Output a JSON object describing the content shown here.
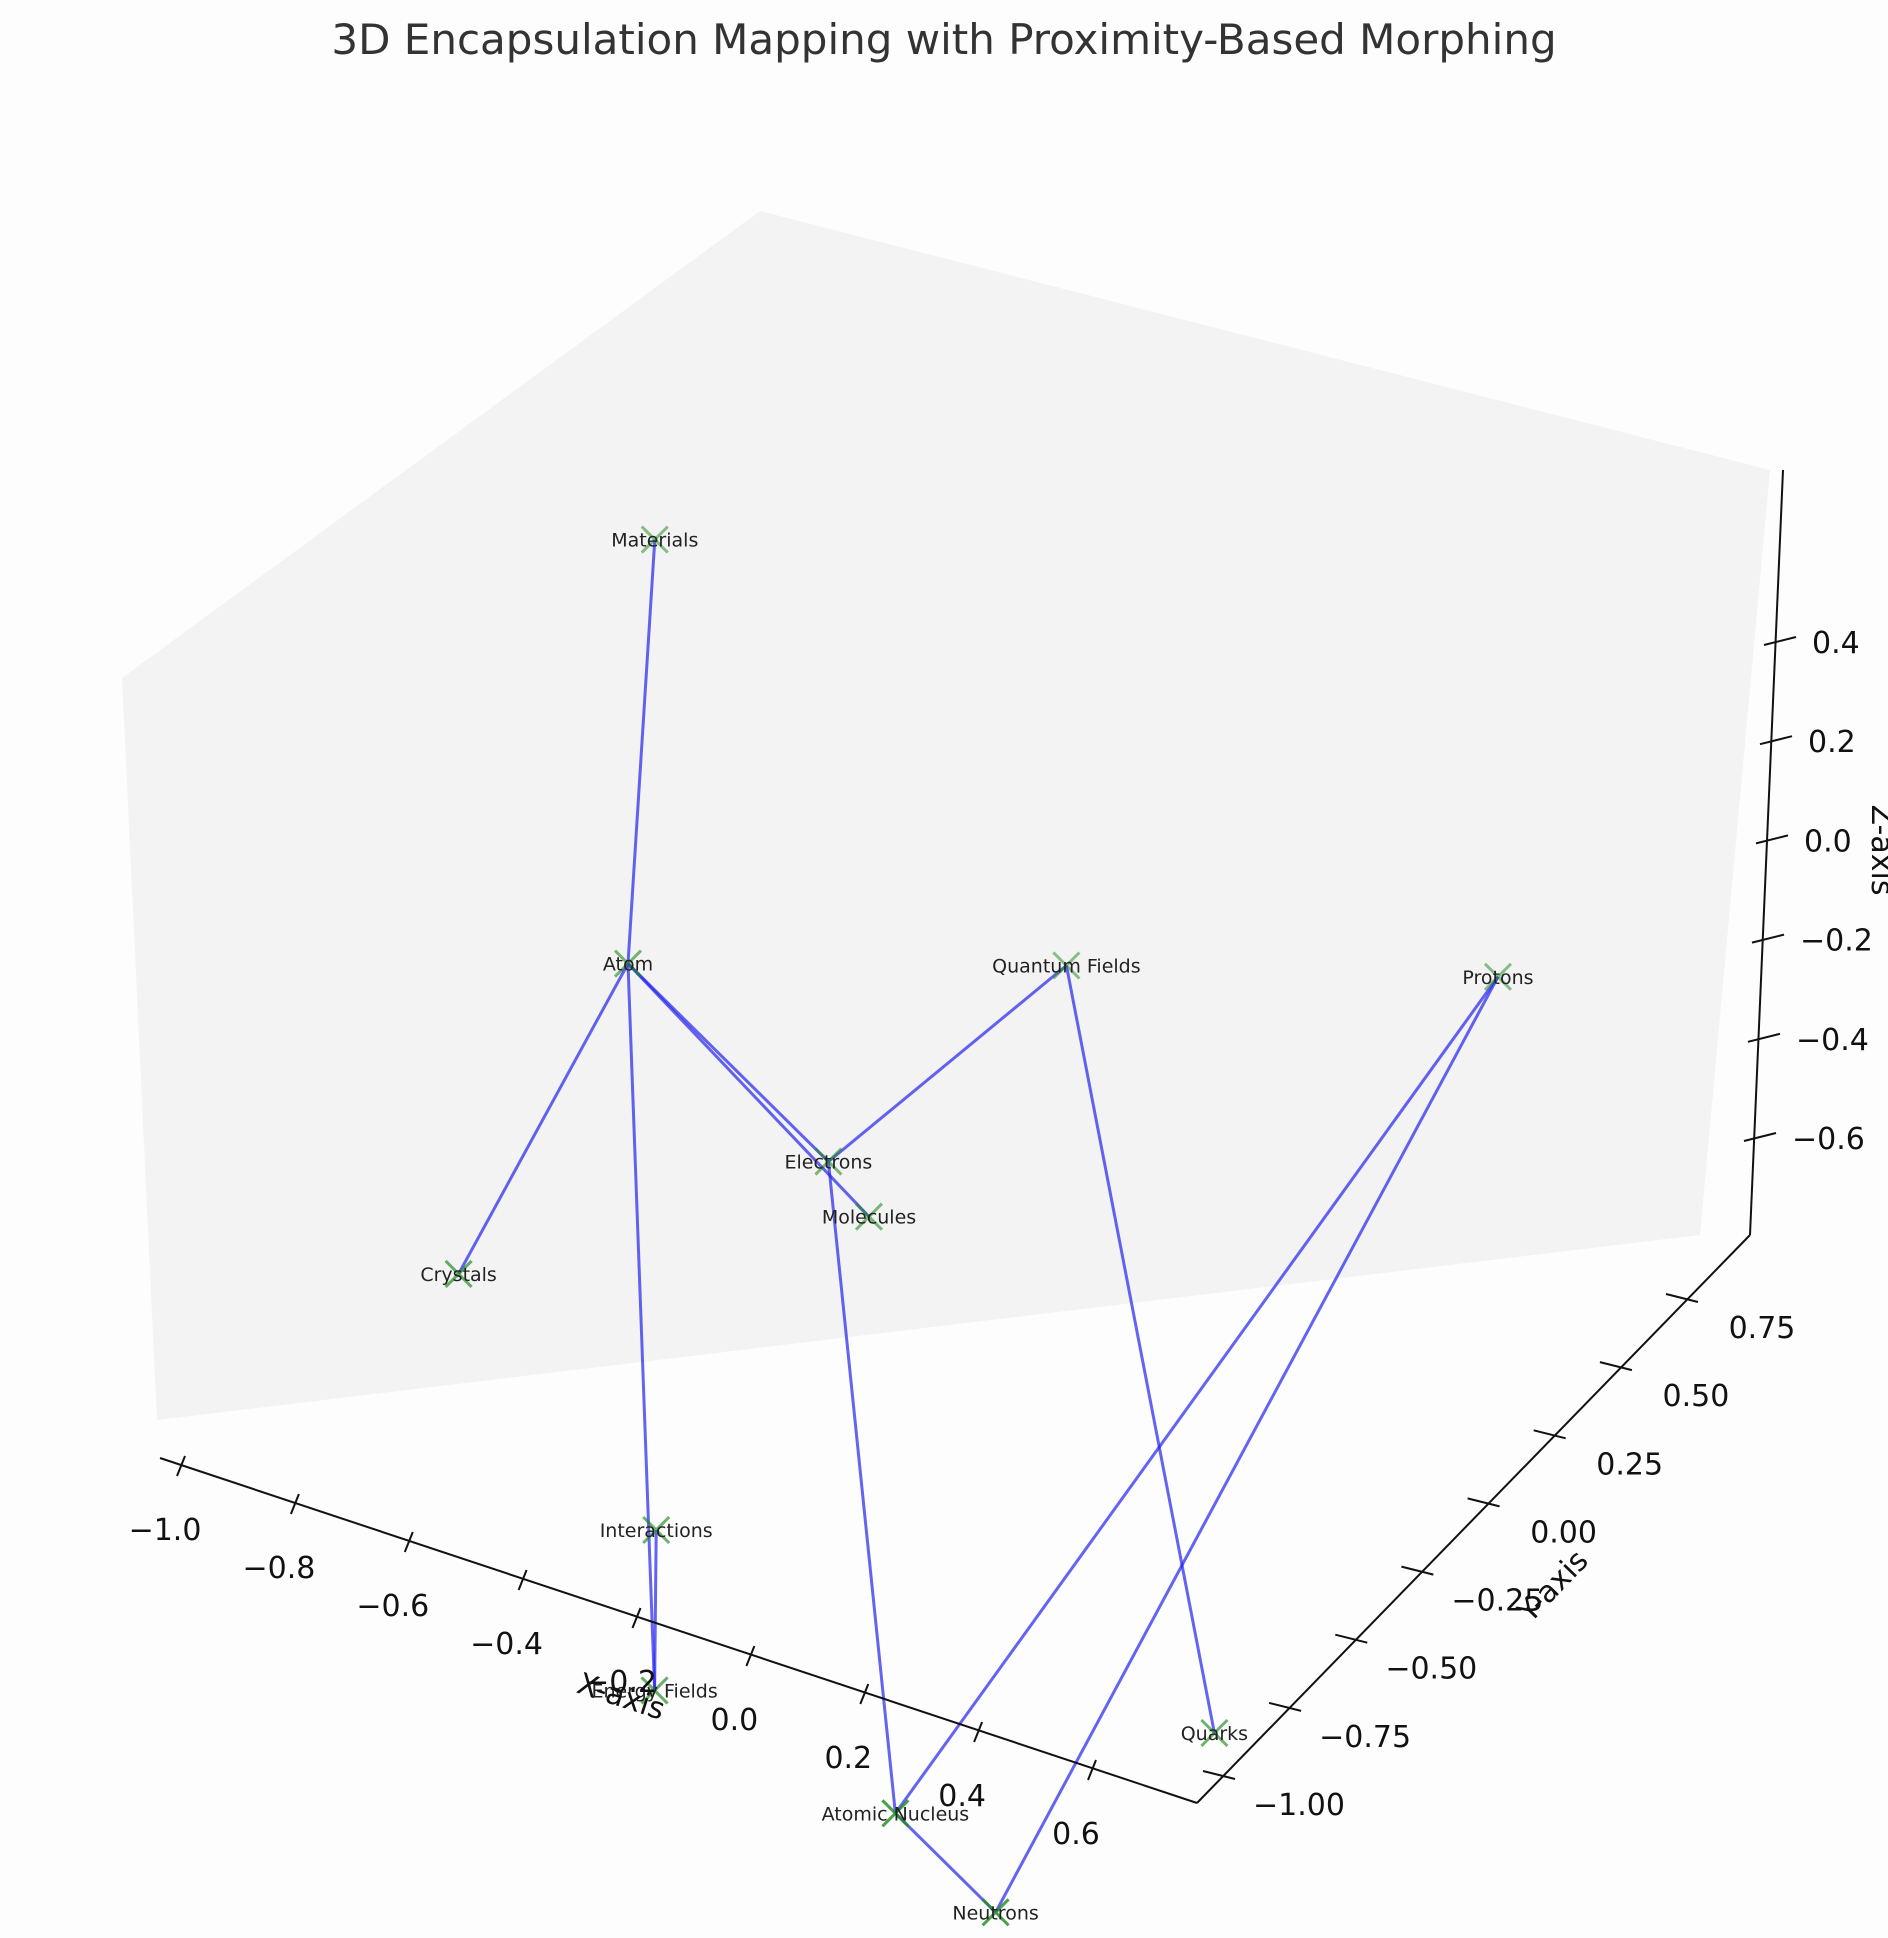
{
  "chart_data": {
    "type": "scatter",
    "projection": "3d",
    "title": "3D Encapsulation Mapping with Proximity-Based Morphing",
    "xlabel": "X-axis",
    "ylabel": "Y-axis",
    "zlabel": "Z-axis",
    "x_ticks": [
      "−1.0",
      "−0.8",
      "−0.6",
      "−0.4",
      "−0.2",
      "0.0",
      "0.2",
      "0.4",
      "0.6"
    ],
    "y_ticks": [
      "−1.00",
      "−0.75",
      "−0.50",
      "−0.25",
      "0.00",
      "0.25",
      "0.50",
      "0.75"
    ],
    "z_ticks": [
      "−0.6",
      "−0.4",
      "−0.2",
      "0.0",
      "0.2",
      "0.4"
    ],
    "xlim": [
      -1.05,
      0.65
    ],
    "ylim": [
      -1.05,
      0.85
    ],
    "zlim": [
      -0.75,
      0.45
    ],
    "marker": "x",
    "marker_color": "#228b22",
    "edge_color": "#2222ee",
    "pane_color": "#f2f2f2",
    "nodes": [
      {
        "label": "Materials",
        "x": -0.88,
        "y": 0.55,
        "z": 0.42
      },
      {
        "label": "Atom",
        "x": -0.75,
        "y": 0.2,
        "z": 0.05
      },
      {
        "label": "Crystals",
        "x": -0.9,
        "y": -0.05,
        "z": -0.28
      },
      {
        "label": "Interactions",
        "x": -0.6,
        "y": 0.05,
        "z": -0.55
      },
      {
        "label": "Energy Fields",
        "x": -0.55,
        "y": -0.05,
        "z": -0.7
      },
      {
        "label": "Electrons",
        "x": -0.45,
        "y": 0.3,
        "z": -0.15
      },
      {
        "label": "Molecules",
        "x": -0.38,
        "y": 0.3,
        "z": -0.2
      },
      {
        "label": "Quantum Fields",
        "x": -0.2,
        "y": 0.6,
        "z": 0.05
      },
      {
        "label": "Protons",
        "x": 0.5,
        "y": 0.6,
        "z": 0.2
      },
      {
        "label": "Quarks",
        "x": 0.3,
        "y": 0.1,
        "z": -0.6
      },
      {
        "label": "Atomic Nucleus",
        "x": 0.05,
        "y": -0.55,
        "z": -0.55
      },
      {
        "label": "Neutrons",
        "x": 0.2,
        "y": -0.5,
        "z": -0.65
      }
    ],
    "edges": [
      [
        "Materials",
        "Atom"
      ],
      [
        "Atom",
        "Crystals"
      ],
      [
        "Atom",
        "Energy Fields"
      ],
      [
        "Interactions",
        "Energy Fields"
      ],
      [
        "Atom",
        "Electrons"
      ],
      [
        "Atom",
        "Molecules"
      ],
      [
        "Electrons",
        "Quantum Fields"
      ],
      [
        "Quantum Fields",
        "Quarks"
      ],
      [
        "Electrons",
        "Atomic Nucleus"
      ],
      [
        "Atomic Nucleus",
        "Protons"
      ],
      [
        "Protons",
        "Neutrons"
      ],
      [
        "Atomic Nucleus",
        "Neutrons"
      ]
    ]
  }
}
